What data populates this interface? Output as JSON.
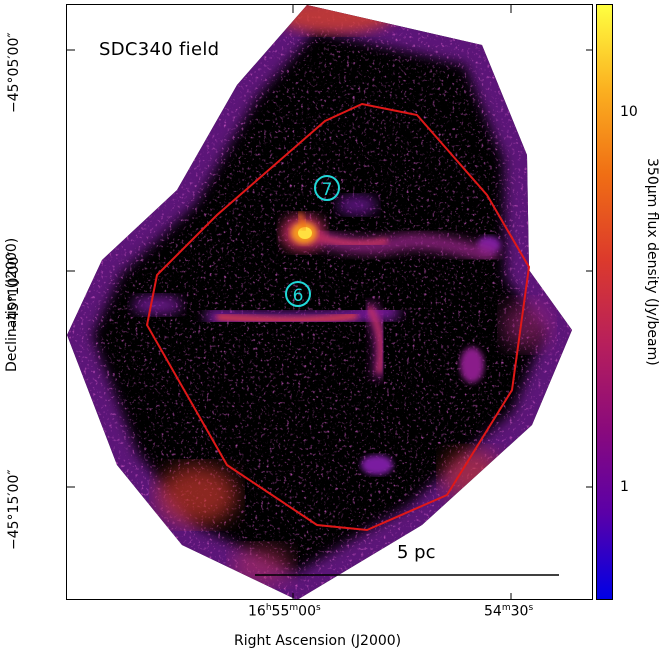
{
  "image": {
    "field_label": "SDC340 field",
    "scale_bar_label": "5 pc",
    "source_labels": [
      "7",
      "6"
    ],
    "colors": {
      "background": "#000000",
      "polygon": "#e01818",
      "markers": "#20d8d8",
      "colormap": [
        "#0000e6",
        "#5a00a8",
        "#8a0a7c",
        "#b71f5c",
        "#dc3a2c",
        "#f06e14",
        "#fbb020",
        "#ffff40"
      ]
    }
  },
  "axes": {
    "y_title": "Declination (J2000)",
    "y_ticks": [
      "−45°05′00″",
      "−45°10′00″",
      "−45°15′00″"
    ],
    "x_title": "Right Ascension (J2000)",
    "x_ticks": [
      {
        "h": "16",
        "hu": "h",
        "m": "55",
        "mu": "m",
        "s": "00",
        "su": "s"
      },
      {
        "h": "",
        "hu": "",
        "m": "54",
        "mu": "m",
        "s": "30",
        "su": "s"
      }
    ]
  },
  "colorbar": {
    "title": "350μm flux density (Jy/beam)",
    "ticks": [
      "10",
      "1"
    ],
    "scale": "log"
  }
}
